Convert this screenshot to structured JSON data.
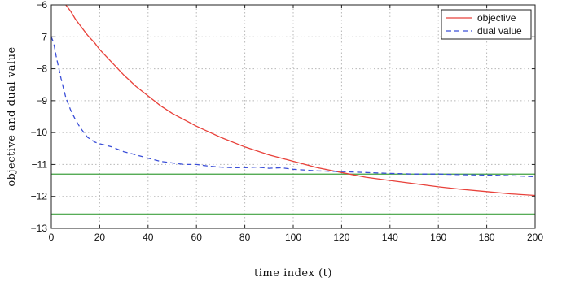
{
  "chart_data": {
    "type": "line",
    "title": "",
    "xlabel": "time index (t)",
    "ylabel": "objective and dual value",
    "xlim": [
      0,
      200
    ],
    "ylim": [
      -13,
      -6
    ],
    "x_ticks": [
      0,
      20,
      40,
      60,
      80,
      100,
      120,
      140,
      160,
      180,
      200
    ],
    "y_ticks": [
      -13,
      -12,
      -11,
      -10,
      -9,
      -8,
      -7,
      -6
    ],
    "x_tick_labels": [
      "0",
      "20",
      "40",
      "60",
      "80",
      "100",
      "120",
      "140",
      "160",
      "180",
      "200"
    ],
    "y_tick_labels": [
      "−13",
      "−12",
      "−11",
      "−10",
      "−9",
      "−8",
      "−7",
      "−6"
    ],
    "grid": true,
    "legend_position": "top-right",
    "series": [
      {
        "name": "objective",
        "color": "#e8413a",
        "style": "solid",
        "x": [
          6,
          8,
          10,
          12,
          15,
          18,
          20,
          25,
          30,
          35,
          40,
          45,
          50,
          60,
          70,
          80,
          90,
          100,
          110,
          120,
          130,
          140,
          150,
          160,
          170,
          180,
          190,
          200
        ],
        "y": [
          -6.0,
          -6.2,
          -6.45,
          -6.65,
          -6.95,
          -7.2,
          -7.4,
          -7.8,
          -8.2,
          -8.55,
          -8.85,
          -9.15,
          -9.4,
          -9.8,
          -10.15,
          -10.45,
          -10.7,
          -10.9,
          -11.1,
          -11.25,
          -11.4,
          -11.5,
          -11.6,
          -11.7,
          -11.78,
          -11.85,
          -11.92,
          -11.97
        ]
      },
      {
        "name": "dual value",
        "color": "#3b4fd8",
        "style": "dashed",
        "x": [
          0,
          1,
          2,
          3,
          4,
          5,
          6,
          8,
          10,
          12,
          15,
          18,
          20,
          25,
          30,
          35,
          40,
          45,
          50,
          55,
          60,
          65,
          70,
          75,
          80,
          85,
          90,
          95,
          100,
          110,
          120,
          130,
          140,
          150,
          160,
          170,
          180,
          190,
          200
        ],
        "y": [
          -7.0,
          -7.2,
          -7.6,
          -7.95,
          -8.3,
          -8.6,
          -8.9,
          -9.3,
          -9.6,
          -9.85,
          -10.15,
          -10.3,
          -10.35,
          -10.45,
          -10.6,
          -10.7,
          -10.8,
          -10.9,
          -10.95,
          -11.0,
          -11.0,
          -11.05,
          -11.08,
          -11.1,
          -11.1,
          -11.08,
          -11.12,
          -11.1,
          -11.15,
          -11.2,
          -11.22,
          -11.25,
          -11.28,
          -11.3,
          -11.3,
          -11.32,
          -11.33,
          -11.35,
          -11.38
        ]
      }
    ],
    "reference_lines": [
      {
        "y": -11.3,
        "color": "#3fa03f"
      },
      {
        "y": -12.55,
        "color": "#3fa03f"
      }
    ]
  }
}
